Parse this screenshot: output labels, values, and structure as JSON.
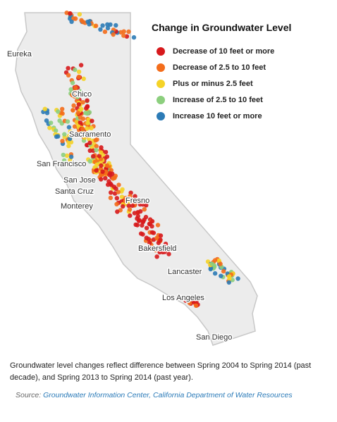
{
  "title": "Change in Groundwater Level",
  "legend": [
    {
      "label": "Decrease of 10 feet or more",
      "color": "#d7191c"
    },
    {
      "label": "Decrease of 2.5 to 10 feet",
      "color": "#f46d1b"
    },
    {
      "label": "Plus or minus 2.5 feet",
      "color": "#f5d327"
    },
    {
      "label": "Increase of 2.5 to 10 feet",
      "color": "#8ccf7e"
    },
    {
      "label": "Increase 10 feet or more",
      "color": "#2c7bb6"
    }
  ],
  "cities": [
    "Eureka",
    "Chico",
    "Sacramento",
    "San Francisco",
    "San Jose",
    "Santa Cruz",
    "Monterey",
    "Fresno",
    "Bakersfield",
    "Lancaster",
    "Los Angeles",
    "San Diego"
  ],
  "caption": "Groundwater level changes reflect difference between Spring 2004 to Spring 2014 (past decade), and Spring 2013 to Spring 2014 (past year).",
  "source": {
    "prefix": "Source:",
    "text": "Groundwater Information Center, California Department of Water Resources"
  }
}
